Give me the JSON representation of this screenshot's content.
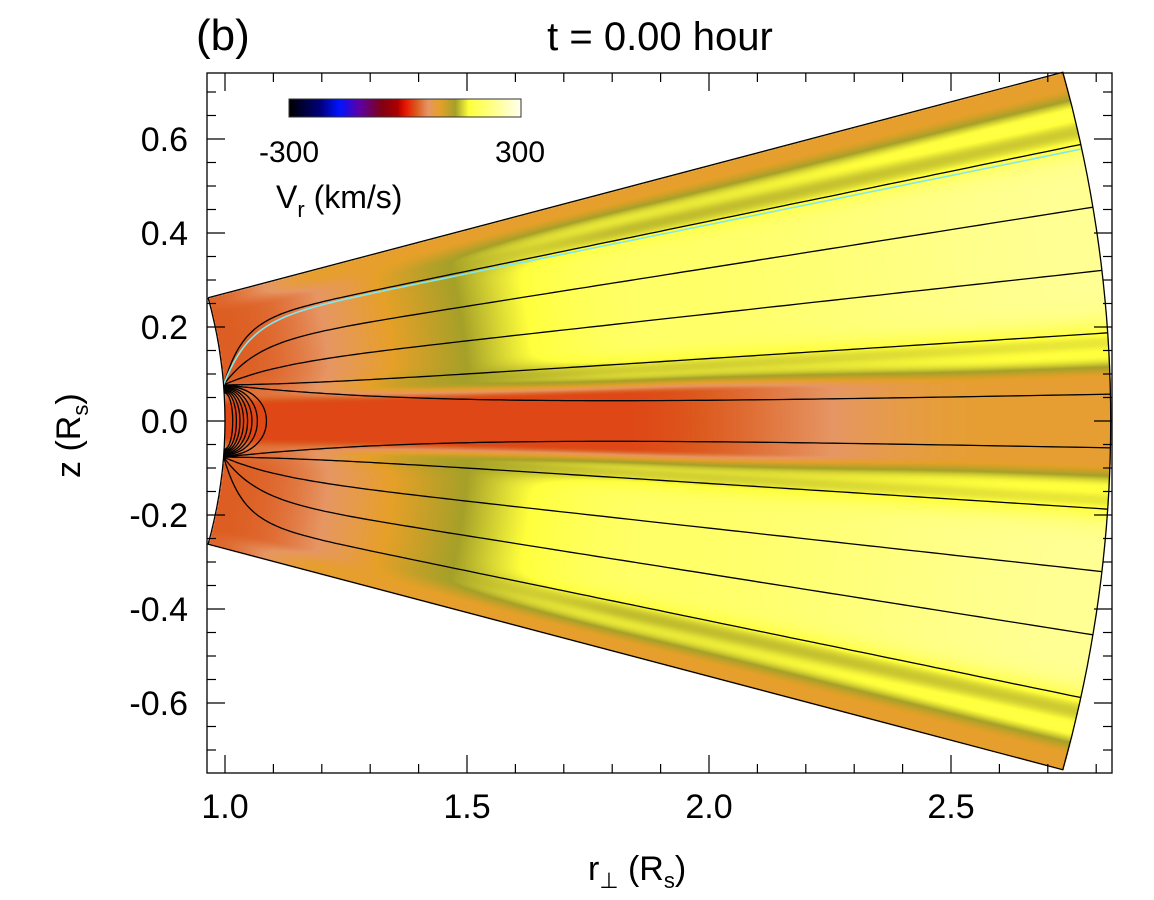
{
  "chart_data": {
    "type": "heatmap",
    "panel_label": "(b)",
    "title": "t = 0.00 hour",
    "xlabel": "r",
    "xlabel_sub": "⊥",
    "xlabel_unit": " (R",
    "xlabel_unit_sub": "s",
    "xlabel_close": ")",
    "ylabel": "z (R",
    "ylabel_sub": "s",
    "ylabel_close": ")",
    "xlim": [
      0.963,
      2.833
    ],
    "ylim": [
      -0.749,
      0.74
    ],
    "x_ticks": [
      "1.0",
      "1.5",
      "2.0",
      "2.5"
    ],
    "x_tick_values": [
      1.0,
      1.5,
      2.0,
      2.5
    ],
    "x_minor_step": 0.1,
    "y_ticks": [
      "0.6",
      "0.4",
      "0.2",
      "0.0",
      "-0.2",
      "-0.4",
      "-0.6"
    ],
    "y_tick_values": [
      0.6,
      0.4,
      0.2,
      0.0,
      -0.2,
      -0.4,
      -0.6
    ],
    "y_minor_step": 0.05,
    "domain": {
      "r_min": 1.0,
      "r_max": 2.83,
      "latitude_deg": 15.2
    },
    "colorbar": {
      "min_label": "-300",
      "max_label": "300",
      "label": "V",
      "label_sub": "r",
      "label_unit": " (km/s)",
      "range": [
        -300,
        300
      ],
      "colormap": [
        [
          -300,
          "#000000"
        ],
        [
          -220,
          "#000078"
        ],
        [
          -170,
          "#0014ff"
        ],
        [
          -120,
          "#5a00aa"
        ],
        [
          -60,
          "#820014"
        ],
        [
          -20,
          "#aa0000"
        ],
        [
          0,
          "#e61400"
        ],
        [
          30,
          "#dc5a1e"
        ],
        [
          60,
          "#e69664"
        ],
        [
          90,
          "#e6a028"
        ],
        [
          130,
          "#a5a028"
        ],
        [
          165,
          "#ffff3c"
        ],
        [
          230,
          "#ffff8c"
        ],
        [
          300,
          "#fffff0"
        ]
      ]
    },
    "field_lines": {
      "open_end_latitudes_deg": [
        12.0,
        9.25,
        6.5,
        3.8,
        1.15,
        -1.15,
        -3.8,
        -6.5,
        -9.25,
        -12.0
      ],
      "highlighted_line_color": "#7fe8f0",
      "highlighted_end_latitude_deg": 11.8,
      "closed_loop_apex_r": [
        1.11,
        1.085,
        1.07,
        1.058,
        1.047,
        1.037,
        1.027,
        1.017
      ]
    }
  }
}
